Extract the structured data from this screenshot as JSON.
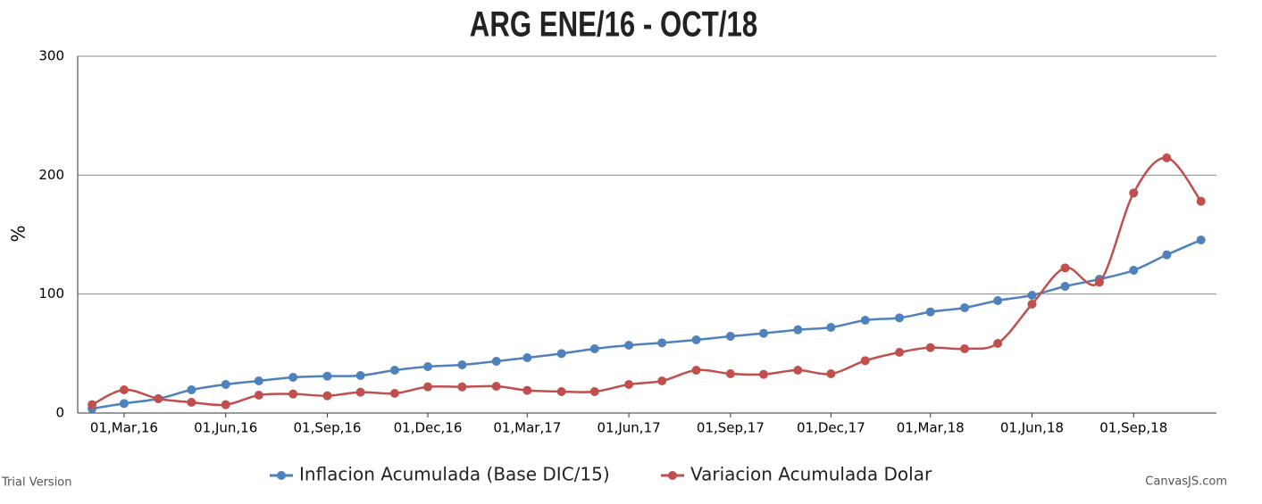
{
  "chart_data": {
    "type": "line",
    "title": "ARG ENE/16 - OCT/18",
    "y_label": "%",
    "watermark": "Trial Version",
    "credit": "CanvasJS.com",
    "x": [
      "2016-02-01",
      "2016-03-01",
      "2016-04-01",
      "2016-05-01",
      "2016-06-01",
      "2016-07-01",
      "2016-08-01",
      "2016-09-01",
      "2016-10-01",
      "2016-11-01",
      "2016-12-01",
      "2017-01-01",
      "2017-02-01",
      "2017-03-01",
      "2017-04-01",
      "2017-05-01",
      "2017-06-01",
      "2017-07-01",
      "2017-08-01",
      "2017-09-01",
      "2017-10-01",
      "2017-11-01",
      "2017-12-01",
      "2018-01-01",
      "2018-02-01",
      "2018-03-01",
      "2018-04-01",
      "2018-05-01",
      "2018-06-01",
      "2018-07-01",
      "2018-08-01",
      "2018-09-01",
      "2018-10-01",
      "2018-11-01"
    ],
    "series": [
      {
        "name": "Inflacion Acumulada (Base DIC/15)",
        "color": "#4f81bc",
        "values": [
          3.7,
          8,
          12,
          19.5,
          24,
          27,
          30,
          31,
          31.5,
          36,
          39,
          40.5,
          43.5,
          46.5,
          50,
          54,
          57,
          59,
          61.5,
          64.5,
          67,
          70,
          72,
          78,
          80,
          85,
          88.5,
          94.5,
          99,
          106.5,
          112.5,
          120,
          133,
          145.5
        ]
      },
      {
        "name": "Variacion Acumulada Dolar",
        "color": "#c0504e",
        "values": [
          7,
          19.5,
          12,
          9,
          7,
          15,
          16,
          14.5,
          17.5,
          16.5,
          22,
          22,
          22.5,
          19,
          18,
          18,
          24,
          27,
          36,
          33,
          32.5,
          36,
          33,
          44,
          51,
          55,
          54,
          58.5,
          91.5,
          122,
          110,
          185,
          214.5,
          178
        ]
      }
    ],
    "xlim": [
      "2016-01-19",
      "2018-11-15"
    ],
    "xticks": [
      {
        "value": "2016-03-01",
        "label": "01,Mar,16"
      },
      {
        "value": "2016-06-01",
        "label": "01,Jun,16"
      },
      {
        "value": "2016-09-01",
        "label": "01,Sep,16"
      },
      {
        "value": "2016-12-01",
        "label": "01,Dec,16"
      },
      {
        "value": "2017-03-01",
        "label": "01,Mar,17"
      },
      {
        "value": "2017-06-01",
        "label": "01,Jun,17"
      },
      {
        "value": "2017-09-01",
        "label": "01,Sep,17"
      },
      {
        "value": "2017-12-01",
        "label": "01,Dec,17"
      },
      {
        "value": "2018-03-01",
        "label": "01,Mar,18"
      },
      {
        "value": "2018-06-01",
        "label": "01,Jun,18"
      },
      {
        "value": "2018-09-01",
        "label": "01,Sep,18"
      }
    ],
    "ylim": [
      0,
      300
    ],
    "yticks": [
      0,
      100,
      200,
      300
    ],
    "grid": true,
    "legend": "bottom"
  }
}
